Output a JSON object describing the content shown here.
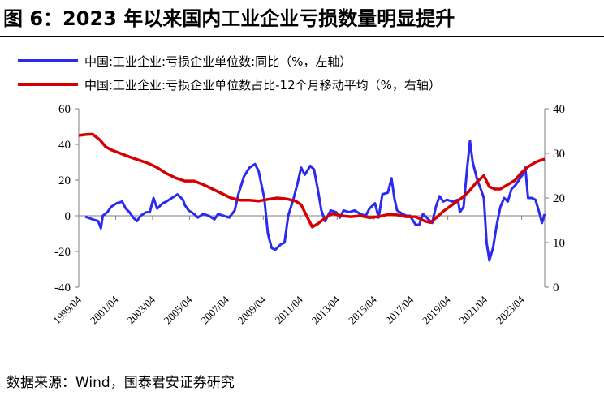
{
  "title": "图 6：2023 年以来国内工业企业亏损数量明显提升",
  "source": "数据来源：Wind，国泰君安证券研究",
  "colors": {
    "series1": "#2b2bf0",
    "series2": "#d40000",
    "axis": "#7f7f7f"
  },
  "chart_data": {
    "type": "line",
    "x_tick_labels": [
      "1999/04",
      "2001/04",
      "2003/04",
      "2005/04",
      "2007/04",
      "2009/04",
      "2011/04",
      "2013/04",
      "2015/04",
      "2017/04",
      "2019/04",
      "2021/04",
      "2023/04"
    ],
    "x_range": [
      1999.25,
      2024.5
    ],
    "y_left": {
      "range": [
        -40,
        60
      ],
      "ticks": [
        "60",
        "40",
        "20",
        "0",
        "-20",
        "-40"
      ],
      "label": "%"
    },
    "y_right": {
      "range": [
        0,
        40
      ],
      "ticks": [
        "40",
        "30",
        "20",
        "10",
        "0"
      ],
      "label": "%"
    },
    "series": [
      {
        "name": "中国:工业企业:亏损企业单位数:同比（%，左轴）",
        "axis": "left",
        "points": [
          [
            1999.6,
            -0.5
          ],
          [
            2000.0,
            -2
          ],
          [
            2000.3,
            -3
          ],
          [
            2000.45,
            -7
          ],
          [
            2000.55,
            0
          ],
          [
            2000.8,
            2
          ],
          [
            2001.0,
            5
          ],
          [
            2001.3,
            7
          ],
          [
            2001.6,
            8
          ],
          [
            2001.8,
            4
          ],
          [
            2002.0,
            2
          ],
          [
            2002.2,
            -1
          ],
          [
            2002.4,
            -3
          ],
          [
            2002.6,
            0
          ],
          [
            2002.9,
            2
          ],
          [
            2003.1,
            2
          ],
          [
            2003.3,
            10
          ],
          [
            2003.5,
            4
          ],
          [
            2003.8,
            7
          ],
          [
            2004.0,
            8
          ],
          [
            2004.3,
            10
          ],
          [
            2004.6,
            12
          ],
          [
            2004.9,
            9
          ],
          [
            2005.0,
            6
          ],
          [
            2005.2,
            3
          ],
          [
            2005.5,
            1
          ],
          [
            2005.7,
            -1
          ],
          [
            2006.0,
            1
          ],
          [
            2006.3,
            0
          ],
          [
            2006.6,
            -2
          ],
          [
            2006.8,
            1
          ],
          [
            2007.1,
            0
          ],
          [
            2007.4,
            -1
          ],
          [
            2007.7,
            3
          ],
          [
            2007.9,
            12
          ],
          [
            2008.2,
            22
          ],
          [
            2008.5,
            27
          ],
          [
            2008.8,
            29
          ],
          [
            2009.0,
            25
          ],
          [
            2009.3,
            10
          ],
          [
            2009.5,
            -10
          ],
          [
            2009.7,
            -18
          ],
          [
            2009.9,
            -19
          ],
          [
            2010.2,
            -16
          ],
          [
            2010.4,
            -15
          ],
          [
            2010.6,
            0
          ],
          [
            2010.9,
            10
          ],
          [
            2011.1,
            18
          ],
          [
            2011.3,
            27
          ],
          [
            2011.5,
            23
          ],
          [
            2011.8,
            28
          ],
          [
            2012.0,
            26
          ],
          [
            2012.2,
            15
          ],
          [
            2012.4,
            3
          ],
          [
            2012.6,
            -3
          ],
          [
            2012.9,
            3
          ],
          [
            2013.2,
            2
          ],
          [
            2013.4,
            -1
          ],
          [
            2013.6,
            3
          ],
          [
            2013.9,
            2
          ],
          [
            2014.2,
            3
          ],
          [
            2014.5,
            1
          ],
          [
            2014.8,
            0
          ],
          [
            2015.0,
            4
          ],
          [
            2015.3,
            7
          ],
          [
            2015.5,
            -1
          ],
          [
            2015.7,
            12
          ],
          [
            2016.0,
            13
          ],
          [
            2016.2,
            21
          ],
          [
            2016.35,
            10
          ],
          [
            2016.5,
            3
          ],
          [
            2016.8,
            1
          ],
          [
            2017.0,
            0
          ],
          [
            2017.2,
            0
          ],
          [
            2017.5,
            -5
          ],
          [
            2017.7,
            -5
          ],
          [
            2017.9,
            1
          ],
          [
            2018.2,
            -2
          ],
          [
            2018.4,
            -4
          ],
          [
            2018.6,
            5
          ],
          [
            2018.8,
            11
          ],
          [
            2019.0,
            8
          ],
          [
            2019.2,
            9
          ],
          [
            2019.5,
            8
          ],
          [
            2019.8,
            9
          ],
          [
            2019.9,
            2
          ],
          [
            2020.1,
            5
          ],
          [
            2020.3,
            27
          ],
          [
            2020.45,
            42
          ],
          [
            2020.6,
            30
          ],
          [
            2020.85,
            20
          ],
          [
            2021.0,
            16
          ],
          [
            2021.2,
            10
          ],
          [
            2021.35,
            -15
          ],
          [
            2021.5,
            -25
          ],
          [
            2021.7,
            -18
          ],
          [
            2021.9,
            -5
          ],
          [
            2022.1,
            5
          ],
          [
            2022.3,
            10
          ],
          [
            2022.5,
            8
          ],
          [
            2022.7,
            15
          ],
          [
            2022.9,
            17
          ],
          [
            2023.1,
            20
          ],
          [
            2023.3,
            23
          ],
          [
            2023.45,
            27
          ],
          [
            2023.6,
            10
          ],
          [
            2023.8,
            10
          ],
          [
            2024.0,
            9
          ],
          [
            2024.2,
            2
          ],
          [
            2024.35,
            -4
          ],
          [
            2024.5,
            1
          ]
        ]
      },
      {
        "name": "中国:工业企业:亏损企业单位数占比-12个月移动平均（%，右轴）",
        "axis": "right",
        "points": [
          [
            1999.25,
            34.0
          ],
          [
            1999.6,
            34.2
          ],
          [
            2000.0,
            34.3
          ],
          [
            2000.4,
            33.0
          ],
          [
            2000.7,
            31.5
          ],
          [
            2001.0,
            30.8
          ],
          [
            2001.5,
            30.0
          ],
          [
            2002.0,
            29.2
          ],
          [
            2002.5,
            28.5
          ],
          [
            2003.0,
            27.8
          ],
          [
            2003.5,
            26.8
          ],
          [
            2004.0,
            25.5
          ],
          [
            2004.5,
            24.5
          ],
          [
            2005.0,
            23.8
          ],
          [
            2005.5,
            23.8
          ],
          [
            2006.0,
            23.0
          ],
          [
            2006.5,
            22.0
          ],
          [
            2007.0,
            21.0
          ],
          [
            2007.5,
            20.0
          ],
          [
            2008.0,
            19.5
          ],
          [
            2008.5,
            19.5
          ],
          [
            2009.0,
            19.3
          ],
          [
            2009.5,
            19.7
          ],
          [
            2010.0,
            20.0
          ],
          [
            2010.5,
            19.8
          ],
          [
            2011.0,
            19.3
          ],
          [
            2011.3,
            18.5
          ],
          [
            2011.6,
            16.0
          ],
          [
            2011.9,
            13.5
          ],
          [
            2012.2,
            14.2
          ],
          [
            2012.6,
            15.5
          ],
          [
            2013.0,
            16.5
          ],
          [
            2013.5,
            16.0
          ],
          [
            2014.0,
            15.8
          ],
          [
            2014.5,
            16.0
          ],
          [
            2015.0,
            15.6
          ],
          [
            2015.5,
            15.8
          ],
          [
            2016.0,
            16.3
          ],
          [
            2016.5,
            16.2
          ],
          [
            2017.0,
            15.8
          ],
          [
            2017.5,
            15.8
          ],
          [
            2018.0,
            14.8
          ],
          [
            2018.3,
            14.5
          ],
          [
            2018.6,
            15.5
          ],
          [
            2019.0,
            17.0
          ],
          [
            2019.5,
            18.5
          ],
          [
            2020.0,
            20.0
          ],
          [
            2020.4,
            21.5
          ],
          [
            2020.8,
            23.5
          ],
          [
            2021.2,
            25.0
          ],
          [
            2021.5,
            22.5
          ],
          [
            2021.8,
            22.0
          ],
          [
            2022.1,
            22.0
          ],
          [
            2022.5,
            23.0
          ],
          [
            2022.9,
            24.0
          ],
          [
            2023.2,
            25.5
          ],
          [
            2023.6,
            27.0
          ],
          [
            2024.0,
            28.0
          ],
          [
            2024.3,
            28.5
          ],
          [
            2024.5,
            28.7
          ]
        ]
      }
    ]
  }
}
